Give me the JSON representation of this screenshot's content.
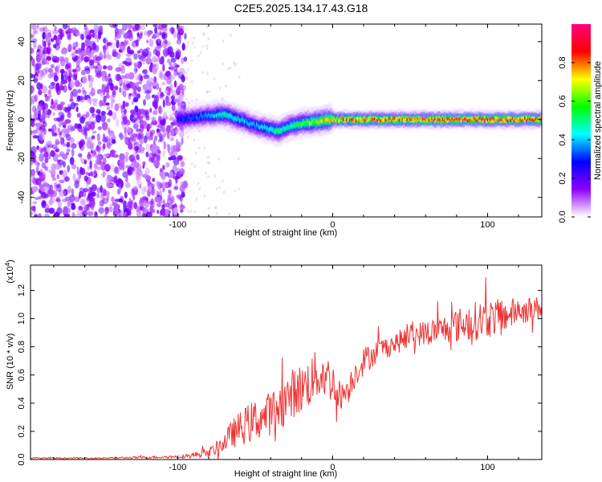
{
  "title": "C2E5.2025.134.17.43.G18",
  "chart_data": [
    {
      "type": "heatmap",
      "xlabel": "Height of straight line (km)",
      "ylabel": "Frequency (Hz)",
      "xlim": [
        -195,
        135
      ],
      "ylim": [
        -50,
        49
      ],
      "xticks": [
        -100,
        0,
        100
      ],
      "yticks": [
        -40,
        -20,
        0,
        20,
        40
      ],
      "colorbar": {
        "label": "Normalized spectral amplitude",
        "range": [
          0,
          1
        ],
        "ticks": [
          0.0,
          0.2,
          0.4,
          0.6,
          0.8
        ],
        "tick_labels": [
          "0.0",
          "0.2",
          "0.4",
          "0.6",
          "0.8"
        ],
        "colormap": [
          "#ffffff",
          "#9000ff",
          "#0000ff",
          "#00ffff",
          "#00ff00",
          "#ffff00",
          "#ff0000",
          "#ff0080"
        ]
      },
      "noise_region": {
        "x": [
          -195,
          -95
        ],
        "y": [
          -50,
          49
        ],
        "amplitude": [
          0.05,
          0.2
        ]
      },
      "signal_ridge": {
        "x": [
          -100,
          -90,
          -80,
          -70,
          -60,
          -50,
          -40,
          -35,
          -30,
          -20,
          -10,
          0,
          20,
          40,
          60,
          80,
          100,
          120,
          135
        ],
        "frequency": [
          0,
          1,
          2,
          2.5,
          0,
          -3,
          -5,
          -6,
          -4,
          -2,
          -1,
          0,
          0,
          0,
          0,
          0,
          0,
          0,
          0
        ],
        "peak_amplitude": [
          0.3,
          0.35,
          0.4,
          0.5,
          0.45,
          0.4,
          0.5,
          0.55,
          0.5,
          0.6,
          0.7,
          0.8,
          0.85,
          0.85,
          0.9,
          0.9,
          0.9,
          0.9,
          0.85
        ]
      }
    },
    {
      "type": "line",
      "xlabel": "Height of straight line (km)",
      "ylabel": "SNR (10 * v/v)",
      "y_multiplier": "(x10",
      "y_multiplier_exp": "4",
      "xlim": [
        -195,
        135
      ],
      "ylim": [
        0,
        1.38
      ],
      "xticks": [
        -100,
        0,
        100
      ],
      "yticks": [
        0.0,
        0.2,
        0.4,
        0.6,
        0.8,
        1.0,
        1.2
      ],
      "ytick_labels": [
        "0.0",
        "0.2",
        "0.4",
        "0.6",
        "0.8",
        "1.0",
        "1.2"
      ],
      "color": "#ee3333",
      "series": [
        {
          "x": [
            -195,
            -150,
            -120,
            -100,
            -90,
            -80,
            -75,
            -70,
            -65,
            -60,
            -55,
            -50,
            -45,
            -40,
            -35,
            -30,
            -25,
            -20,
            -15,
            -10,
            -5,
            0,
            5,
            10,
            15,
            20,
            30,
            40,
            50,
            60,
            70,
            80,
            90,
            100,
            110,
            120,
            135
          ],
          "values": [
            0.01,
            0.01,
            0.015,
            0.02,
            0.03,
            0.05,
            0.08,
            0.12,
            0.18,
            0.22,
            0.25,
            0.28,
            0.3,
            0.33,
            0.37,
            0.42,
            0.48,
            0.5,
            0.55,
            0.6,
            0.6,
            0.55,
            0.45,
            0.5,
            0.62,
            0.7,
            0.78,
            0.82,
            0.88,
            0.9,
            0.92,
            0.95,
            0.98,
            1.0,
            1.02,
            1.05,
            1.08
          ],
          "noise_spread": [
            0.005,
            0.005,
            0.008,
            0.01,
            0.02,
            0.03,
            0.05,
            0.07,
            0.1,
            0.12,
            0.14,
            0.15,
            0.15,
            0.16,
            0.16,
            0.17,
            0.18,
            0.18,
            0.18,
            0.18,
            0.17,
            0.15,
            0.1,
            0.1,
            0.1,
            0.1,
            0.08,
            0.08,
            0.08,
            0.09,
            0.1,
            0.12,
            0.14,
            0.14,
            0.12,
            0.1,
            0.08
          ]
        }
      ]
    }
  ]
}
